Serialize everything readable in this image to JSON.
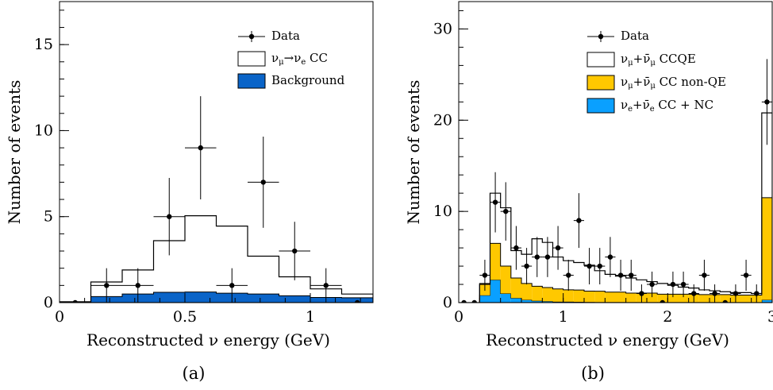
{
  "chart_data": [
    {
      "type": "histogram",
      "panel_label": "(a)",
      "xlabel": "Reconstructed ν energy (GeV)",
      "ylabel": "Number of events",
      "xlim": [
        0,
        1.25
      ],
      "ylim": [
        0,
        17.5
      ],
      "xticks": [
        0,
        0.5,
        1
      ],
      "xtick_labels": [
        "0",
        "0.5",
        "1"
      ],
      "yticks": [
        0,
        5,
        10,
        15
      ],
      "ytick_labels": [
        "0",
        "5",
        "10",
        "15"
      ],
      "bin_edges": [
        0,
        0.125,
        0.25,
        0.375,
        0.5,
        0.625,
        0.75,
        0.875,
        1.0,
        1.125,
        1.25
      ],
      "legend": {
        "placement": "top-right",
        "entries": [
          {
            "text_main": "ν",
            "text_sub": "μ",
            "text_mid": "→ν",
            "text_sub2": "e",
            "text_tail": " CC",
            "kind": "hist-open"
          },
          {
            "text_main": "Background",
            "kind": "fill",
            "color": "#0a64c8"
          }
        ],
        "data_label": "Data"
      },
      "series": [
        {
          "name": "Background",
          "style": "filled",
          "color": "#0a64c8",
          "values": [
            0.05,
            0.35,
            0.5,
            0.6,
            0.62,
            0.55,
            0.5,
            0.4,
            0.3,
            0.28
          ]
        },
        {
          "name": "νμ→νe CC",
          "style": "step",
          "values": [
            0.05,
            1.2,
            1.9,
            3.6,
            5.05,
            4.45,
            2.7,
            1.5,
            0.8,
            0.5
          ]
        }
      ],
      "data_points": {
        "name": "Data",
        "x": [
          0.0625,
          0.1875,
          0.3125,
          0.4375,
          0.5625,
          0.6875,
          0.8125,
          0.9375,
          1.0625,
          1.1875
        ],
        "y": [
          0,
          1,
          1,
          5,
          9,
          1,
          7,
          3,
          1,
          0
        ],
        "yerr_low": [
          0,
          1,
          1,
          2.25,
          3.0,
          1,
          2.65,
          1.7,
          1,
          0
        ],
        "yerr_high": [
          0,
          1,
          1,
          2.25,
          3.0,
          1,
          2.65,
          1.7,
          1,
          0
        ]
      }
    },
    {
      "type": "histogram",
      "panel_label": "(b)",
      "xlabel": "Reconstructed ν energy (GeV)",
      "ylabel": "Number of events",
      "xlim": [
        0,
        3
      ],
      "ylim": [
        0,
        33
      ],
      "xticks": [
        0,
        1,
        2,
        3
      ],
      "xtick_labels": [
        "0",
        "1",
        "2",
        "3"
      ],
      "yticks": [
        0,
        10,
        20,
        30
      ],
      "ytick_labels": [
        "0",
        "10",
        "20",
        "30"
      ],
      "bin_edges": [
        0,
        0.1,
        0.2,
        0.3,
        0.4,
        0.5,
        0.6,
        0.7,
        0.8,
        0.9,
        1.0,
        1.1,
        1.2,
        1.3,
        1.4,
        1.5,
        1.6,
        1.7,
        1.8,
        1.9,
        2.0,
        2.1,
        2.2,
        2.3,
        2.4,
        2.5,
        2.6,
        2.7,
        2.8,
        2.9,
        3.0
      ],
      "legend": {
        "placement": "top-right",
        "data_label": "Data",
        "entries": [
          {
            "text_main": "ν",
            "text_sub": "μ",
            "text_mid": "+ν̄",
            "text_sub2": "μ",
            "text_tail": " CCQE",
            "kind": "hist-open"
          },
          {
            "text_main": "ν",
            "text_sub": "μ",
            "text_mid": "+ν̄",
            "text_sub2": "μ",
            "text_tail": " CC non-QE",
            "kind": "fill",
            "color": "#ffc800"
          },
          {
            "text_main": "ν",
            "text_sub": "e",
            "text_mid": "+ν̄",
            "text_sub2": "e",
            "text_tail": " CC + NC",
            "kind": "fill",
            "color": "#0aa0ff"
          }
        ]
      },
      "series": [
        {
          "name": "νe+ν̄e CC + NC",
          "style": "filled",
          "color": "#0aa0ff",
          "values": [
            0,
            0,
            0.8,
            2.5,
            1.0,
            0.5,
            0.3,
            0.2,
            0.15,
            0.1,
            0.1,
            0.08,
            0.06,
            0.05,
            0.05,
            0.05,
            0.04,
            0.04,
            0.04,
            0.03,
            0.03,
            0.03,
            0.03,
            0.03,
            0.03,
            0.03,
            0.03,
            0.03,
            0.03,
            0.3
          ]
        },
        {
          "name": "νμ+ν̄μ CC non-QE",
          "style": "filled",
          "color": "#ffc800",
          "values": [
            0,
            0,
            1.3,
            4.0,
            3.0,
            2.2,
            1.8,
            1.6,
            1.5,
            1.4,
            1.3,
            1.3,
            1.2,
            1.2,
            1.1,
            1.1,
            1.0,
            1.0,
            1.0,
            0.9,
            0.9,
            0.9,
            0.9,
            0.85,
            0.85,
            0.85,
            0.8,
            0.8,
            0.8,
            11.2
          ]
        },
        {
          "name": "νμ+ν̄μ CCQE",
          "style": "step",
          "values": [
            0,
            0,
            2.0,
            12.0,
            10.4,
            5.7,
            5.3,
            7.0,
            6.6,
            5.0,
            4.6,
            4.4,
            4.1,
            3.5,
            3.1,
            2.9,
            2.7,
            2.5,
            2.3,
            2.1,
            1.9,
            1.7,
            1.6,
            1.4,
            1.3,
            1.2,
            1.1,
            1.1,
            1.0,
            20.8
          ]
        }
      ],
      "data_points": {
        "name": "Data",
        "x": [
          0.05,
          0.15,
          0.25,
          0.35,
          0.45,
          0.55,
          0.65,
          0.75,
          0.85,
          0.95,
          1.05,
          1.15,
          1.25,
          1.35,
          1.45,
          1.55,
          1.65,
          1.75,
          1.85,
          1.95,
          2.05,
          2.15,
          2.25,
          2.35,
          2.45,
          2.55,
          2.65,
          2.75,
          2.85,
          2.95
        ],
        "y": [
          0,
          0,
          3,
          11,
          10,
          6,
          4,
          5,
          5,
          6,
          3,
          9,
          4,
          4,
          5,
          3,
          3,
          1,
          2,
          0,
          2,
          2,
          1,
          3,
          1,
          0,
          1,
          3,
          1,
          22
        ],
        "yerr_low": [
          0,
          0,
          1.7,
          3.3,
          3.2,
          2.4,
          2.0,
          2.2,
          2.2,
          2.4,
          1.7,
          3.0,
          2.0,
          2.0,
          2.2,
          1.7,
          1.7,
          1.0,
          1.4,
          0,
          1.4,
          1.4,
          1.0,
          1.7,
          1.0,
          0,
          1.0,
          1.7,
          1.0,
          4.7
        ],
        "yerr_high": [
          0,
          0,
          1.7,
          3.3,
          3.2,
          2.4,
          2.0,
          2.2,
          2.2,
          2.4,
          1.7,
          3.0,
          2.0,
          2.0,
          2.2,
          1.7,
          1.7,
          1.0,
          1.4,
          0,
          1.4,
          1.4,
          1.0,
          1.7,
          1.0,
          0,
          1.0,
          1.7,
          1.0,
          4.7
        ]
      }
    }
  ]
}
